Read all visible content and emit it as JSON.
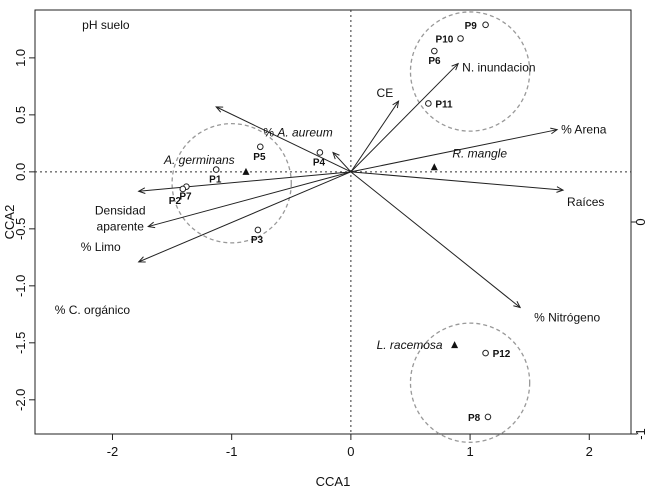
{
  "chart_data": {
    "type": "scatter",
    "xlabel": "CCA1",
    "ylabel": "CCA2",
    "xlim": [
      -2.65,
      2.35
    ],
    "ylim": [
      -2.3,
      1.42
    ],
    "right_lim": [
      -1.0,
      1.0
    ],
    "x_ticks": [
      -2,
      -1,
      0,
      1,
      2
    ],
    "y_ticks": [
      -2.0,
      -1.5,
      -1.0,
      -0.5,
      0.0,
      0.5,
      1.0
    ],
    "right_ticks": [
      -1,
      0
    ],
    "x_tick_labels": [
      "-2",
      "-1",
      "0",
      "1",
      "2"
    ],
    "y_tick_labels": [
      "-2.0",
      "-1.5",
      "-1.0",
      "-0.5",
      "0.0",
      "0.5",
      "1.0"
    ],
    "right_tick_labels": [
      "-1",
      "0"
    ],
    "origin_lines": "dotted",
    "environmental_vectors": [
      {
        "name": "pH suelo",
        "x": -1.13,
        "y": 0.57
      },
      {
        "name": "CE",
        "x": 0.4,
        "y": 0.62
      },
      {
        "name": "N. inundacion",
        "x": 0.9,
        "y": 0.95
      },
      {
        "name": "% Arena",
        "x": 1.73,
        "y": 0.37
      },
      {
        "name": "Raíces",
        "x": 1.78,
        "y": -0.16
      },
      {
        "name": "% Nitrógeno",
        "x": 1.42,
        "y": -1.19
      },
      {
        "name": "Densidad aparente",
        "x": -1.7,
        "y": -0.48
      },
      {
        "name": "% Limo",
        "x": -1.78,
        "y": -0.17
      },
      {
        "name": "% C. orgánico",
        "x": -1.78,
        "y": -0.79
      },
      {
        "name": "% A. aureum",
        "x": -0.15,
        "y": 0.17
      }
    ],
    "species": [
      {
        "name": "A. germinans",
        "x": -0.88,
        "y": 0.0
      },
      {
        "name": "R. mangle",
        "x": 0.7,
        "y": 0.04
      },
      {
        "name": "L. racemosa",
        "x": 0.87,
        "y": -1.52
      }
    ],
    "sites": [
      {
        "name": "P9",
        "x": 1.13,
        "y": 1.29
      },
      {
        "name": "P10",
        "x": 0.92,
        "y": 1.17
      },
      {
        "name": "P6",
        "x": 0.7,
        "y": 1.06
      },
      {
        "name": "P11",
        "x": 0.65,
        "y": 0.6
      },
      {
        "name": "P5",
        "x": -0.76,
        "y": 0.22
      },
      {
        "name": "P4",
        "x": -0.26,
        "y": 0.17
      },
      {
        "name": "P1",
        "x": -1.13,
        "y": 0.02
      },
      {
        "name": "P7",
        "x": -1.38,
        "y": -0.13
      },
      {
        "name": "P2",
        "x": -1.41,
        "y": -0.15
      },
      {
        "name": "P3",
        "x": -0.78,
        "y": -0.51
      },
      {
        "name": "P12",
        "x": 1.13,
        "y": -1.59
      },
      {
        "name": "P8",
        "x": 1.15,
        "y": -2.15
      }
    ],
    "groups": [
      {
        "cx": 1.0,
        "cy": 0.88,
        "r": 0.5
      },
      {
        "cx": -1.0,
        "cy": -0.1,
        "r": 0.5
      },
      {
        "cx": 1.0,
        "cy": -1.85,
        "r": 0.5
      }
    ]
  }
}
